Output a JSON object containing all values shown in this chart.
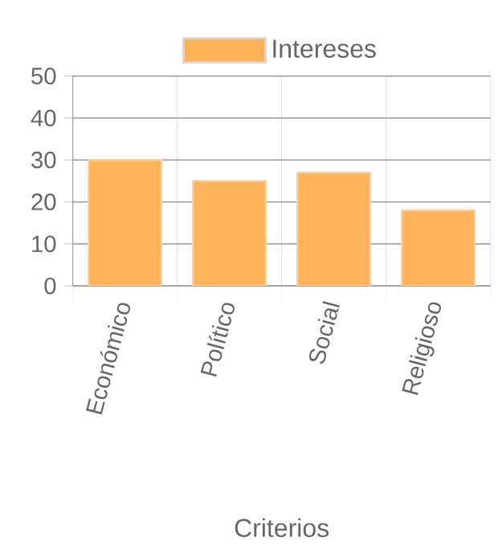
{
  "chart_data": {
    "type": "bar",
    "xlabel": "Criterios",
    "categories": [
      "Económico",
      "Político",
      "Social",
      "Religioso"
    ],
    "series": [
      {
        "name": "Intereses",
        "color": "#ffb35b",
        "values": [
          30,
          25,
          27,
          18
        ]
      }
    ],
    "ylim": [
      0,
      50
    ],
    "yticks": [
      0,
      10,
      20,
      30,
      40,
      50
    ],
    "grid": true,
    "legend": "top"
  }
}
